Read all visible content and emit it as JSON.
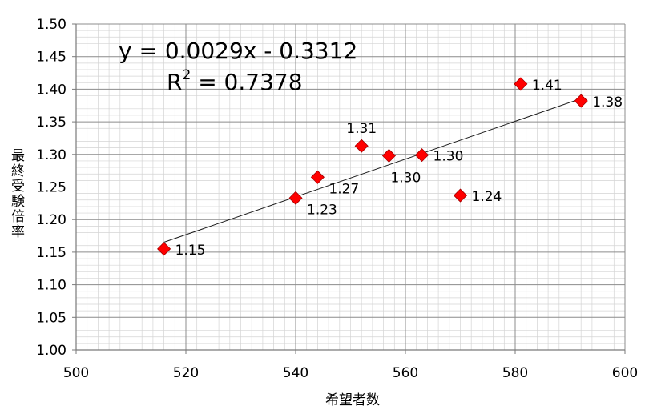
{
  "chart_data": {
    "type": "scatter",
    "xlabel": "希望者数",
    "ylabel": "最終受験倍率",
    "xlim": [
      500,
      600
    ],
    "ylim": [
      1.0,
      1.5
    ],
    "x_ticks": [
      "500",
      "520",
      "540",
      "560",
      "580",
      "600"
    ],
    "y_ticks": [
      "1.00",
      "1.05",
      "1.10",
      "1.15",
      "1.20",
      "1.25",
      "1.30",
      "1.35",
      "1.40",
      "1.45",
      "1.50"
    ],
    "grid": true,
    "points": [
      {
        "x": 516,
        "y": 1.155,
        "label": "1.15",
        "label_pos": "right"
      },
      {
        "x": 540,
        "y": 1.233,
        "label": "1.23",
        "label_pos": "below-right"
      },
      {
        "x": 544,
        "y": 1.265,
        "label": "1.27",
        "label_pos": "below-right"
      },
      {
        "x": 552,
        "y": 1.313,
        "label": "1.31",
        "label_pos": "above"
      },
      {
        "x": 557,
        "y": 1.298,
        "label": "1.30",
        "label_pos": "below-right"
      },
      {
        "x": 563,
        "y": 1.299,
        "label": "1.30",
        "label_pos": "right"
      },
      {
        "x": 570,
        "y": 1.237,
        "label": "1.24",
        "label_pos": "right"
      },
      {
        "x": 581,
        "y": 1.408,
        "label": "1.41",
        "label_pos": "right"
      },
      {
        "x": 592,
        "y": 1.382,
        "label": "1.38",
        "label_pos": "right"
      }
    ],
    "trendline": {
      "type": "linear",
      "slope": 0.0029,
      "intercept": -0.3312,
      "x_range": [
        516,
        592
      ],
      "equation": "y = 0.0029x - 0.3312",
      "r2_prefix": "R",
      "r2_sup": "2",
      "r2_value": " = 0.7378"
    },
    "marker_color": "#ff0000",
    "marker_edge_color": "#a00000"
  }
}
